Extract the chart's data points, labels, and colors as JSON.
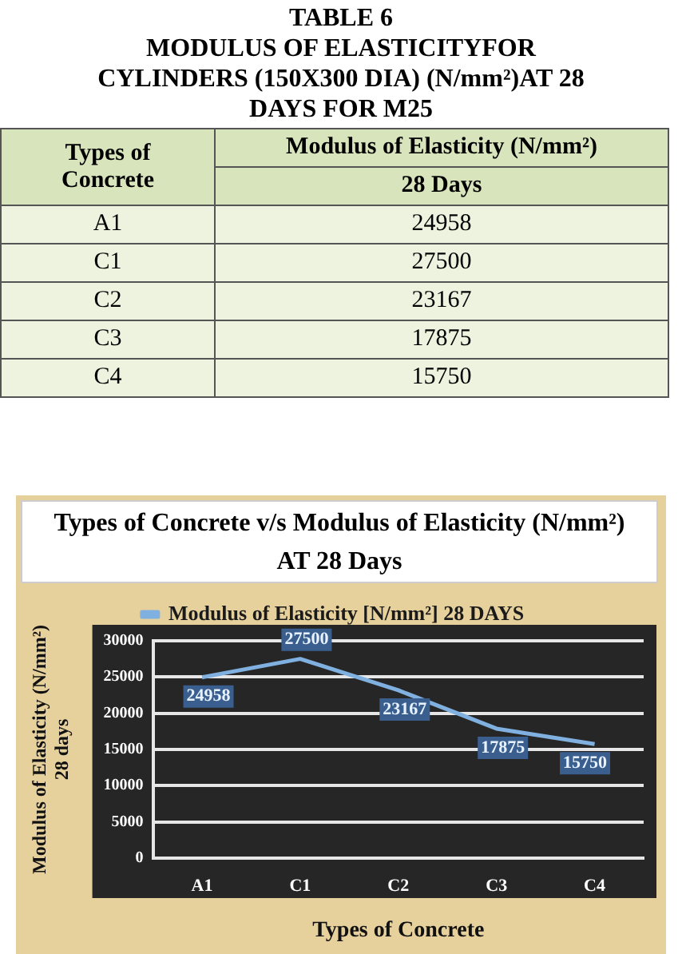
{
  "chart_data": {
    "type": "line",
    "title": "Types of Concrete v/s Modulus of Elasticity (N/mm²)\nAT 28 Days",
    "xlabel": "Types of Concrete",
    "ylabel": "Modulus of Elasticity (N/mm²)\n28 days",
    "categories": [
      "A1",
      "C1",
      "C2",
      "C3",
      "C4"
    ],
    "series": [
      {
        "name": "Modulus of Elasticity [N/mm²] 28 DAYS",
        "color": "#7fb0e0",
        "values": [
          24958,
          27500,
          23167,
          17875,
          15750
        ]
      }
    ],
    "ylim": [
      0,
      30000
    ],
    "yticks": [
      0,
      5000,
      10000,
      15000,
      20000,
      25000,
      30000
    ],
    "grid": "y",
    "legend": "top",
    "marker": "none",
    "line_style": "solid",
    "data_labels": true,
    "annotations": [
      "TABLE 6",
      "MODULUS OF ELASTICITYFOR\nCYLINDERS (150X300 DIA) (N/mm²)AT 28\nDAYS FOR M25",
      "Types of\nConcrete",
      "Modulus of Elasticity (N/mm²)",
      "28 Days",
      "24958",
      "27500",
      "23167",
      "17875",
      "15750"
    ]
  }
}
